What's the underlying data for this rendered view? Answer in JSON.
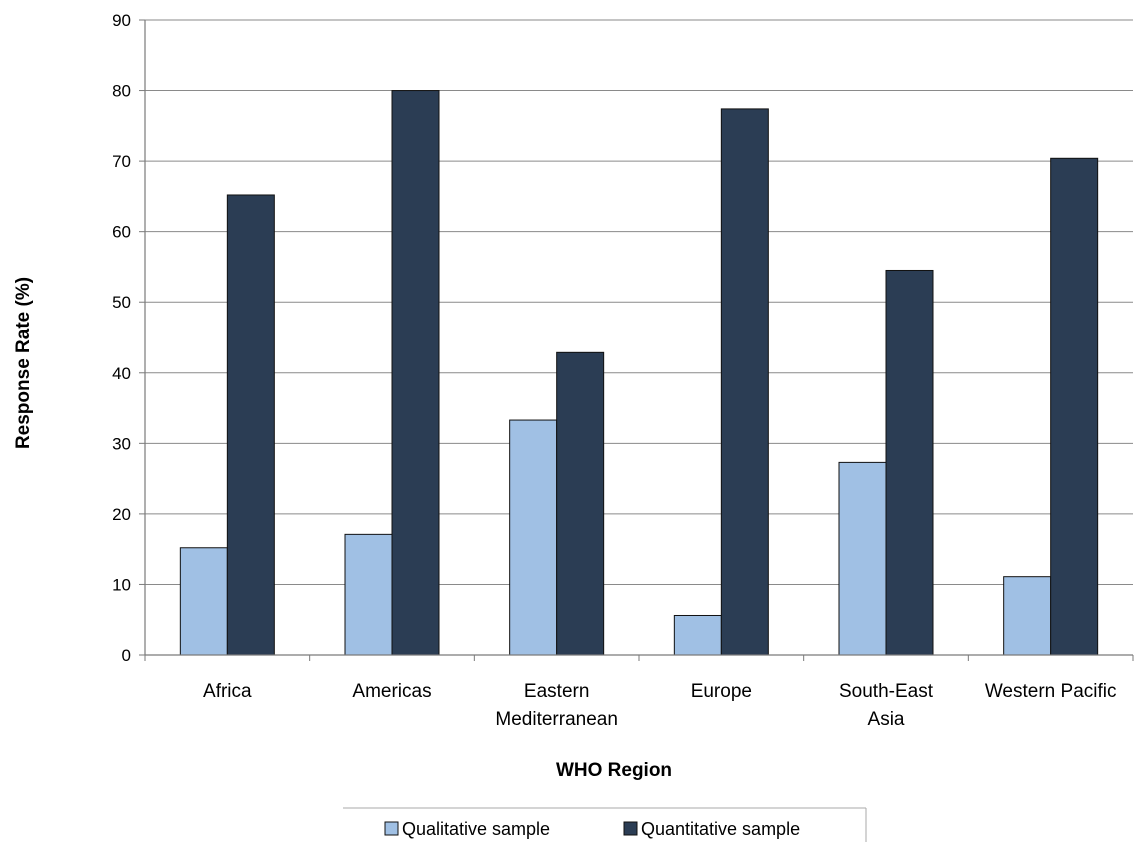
{
  "chart_data": {
    "type": "bar",
    "categories": [
      [
        "Africa"
      ],
      [
        "Americas"
      ],
      [
        "Eastern",
        "Mediterranean"
      ],
      [
        "Europe"
      ],
      [
        "South-East",
        "Asia"
      ],
      [
        "Western Pacific"
      ]
    ],
    "series": [
      {
        "name": "Qualitative sample",
        "color": "#a0c0e4",
        "values": [
          15.2,
          17.1,
          33.3,
          5.6,
          27.3,
          11.1
        ]
      },
      {
        "name": "Quantitative sample",
        "color": "#2b3d54",
        "values": [
          65.2,
          80.0,
          42.9,
          77.4,
          54.5,
          70.4
        ]
      }
    ],
    "xlabel": "WHO Region",
    "ylabel": "Response Rate (%)",
    "ylim": [
      0,
      90
    ],
    "yticks": [
      0,
      10,
      20,
      30,
      40,
      50,
      60,
      70,
      80,
      90
    ],
    "grid": true,
    "legend_position": "bottom"
  }
}
